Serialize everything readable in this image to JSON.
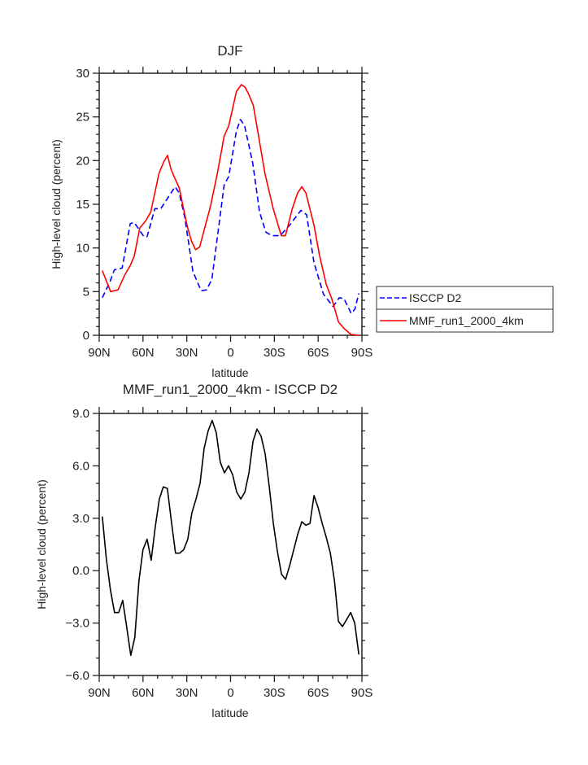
{
  "chart_data": [
    {
      "type": "line",
      "title": "DJF",
      "xlabel": "latitude",
      "ylabel": "High-level cloud (percent)",
      "xlim": [
        90,
        -90
      ],
      "ylim": [
        0,
        30
      ],
      "x_tick_values": [
        90,
        60,
        30,
        0,
        -30,
        -60,
        -90
      ],
      "x_tick_labels": [
        "90N",
        "60N",
        "30N",
        "0",
        "30S",
        "60S",
        "90S"
      ],
      "y_tick_values": [
        0,
        5,
        10,
        15,
        20,
        25,
        30
      ],
      "y_tick_labels": [
        "0",
        "5",
        "10",
        "15",
        "20",
        "25",
        "30"
      ],
      "grid": false,
      "legend_position": "right",
      "series": [
        {
          "name": "ISCCP D2",
          "color": "#0000ff",
          "style": "dashed",
          "x": [
            87.9,
            82.7,
            79.6,
            74.3,
            68.7,
            65.9,
            59.4,
            57.2,
            51.9,
            47.8,
            38.0,
            35.2,
            31.4,
            25.8,
            20.2,
            16.5,
            12.8,
            4.4,
            1.2,
            -4.0,
            -6.8,
            -9.6,
            -15.2,
            -19.9,
            -24.2,
            -28.3,
            -33.9,
            -40.4,
            -48.2,
            -52.1,
            -57.2,
            -63.7,
            -70.2,
            -74.5,
            -77.7,
            -82.7,
            -85.2,
            -87.9
          ],
          "y": [
            4.3,
            6.1,
            7.5,
            7.7,
            12.8,
            12.9,
            11.3,
            11.3,
            14.5,
            14.5,
            17.0,
            16.3,
            13.5,
            7.3,
            5.1,
            5.2,
            6.4,
            17.2,
            18.2,
            23.4,
            24.7,
            24.0,
            19.7,
            14.1,
            11.8,
            11.4,
            11.4,
            12.6,
            14.3,
            13.8,
            8.3,
            4.7,
            3.3,
            4.3,
            4.2,
            2.5,
            3.0,
            4.8
          ]
        },
        {
          "name": "MMF_run1_2000_4km",
          "color": "#ff0000",
          "style": "solid",
          "x": [
            87.9,
            82.2,
            77.1,
            72.5,
            68.7,
            65.9,
            62.2,
            58.1,
            54.7,
            51.9,
            49.1,
            46.0,
            43.2,
            40.8,
            38.0,
            35.2,
            29.6,
            26.8,
            24.0,
            21.2,
            13.7,
            9.0,
            4.4,
            1.2,
            -4.0,
            -7.4,
            -10.0,
            -12.4,
            -15.6,
            -18.9,
            -23.6,
            -29.2,
            -34.8,
            -37.6,
            -42.3,
            -46.0,
            -48.8,
            -51.6,
            -57.2,
            -60.9,
            -65.6,
            -69.3,
            -74.0,
            -77.7,
            -82.4,
            -87.9
          ],
          "y": [
            7.4,
            5.0,
            5.2,
            6.9,
            8.0,
            9.1,
            12.3,
            13.1,
            14.1,
            16.3,
            18.5,
            19.8,
            20.6,
            19.0,
            17.9,
            16.9,
            12.4,
            10.8,
            9.8,
            10.1,
            14.8,
            18.6,
            22.8,
            24.0,
            27.9,
            28.7,
            28.4,
            27.6,
            26.3,
            23.1,
            18.5,
            14.5,
            11.4,
            11.4,
            14.5,
            16.3,
            17.0,
            16.3,
            12.6,
            9.2,
            5.8,
            4.2,
            1.5,
            0.8,
            0.1,
            0.0
          ]
        }
      ]
    },
    {
      "type": "line",
      "title": "MMF_run1_2000_4km - ISCCP D2",
      "xlabel": "latitude",
      "ylabel": "High-level cloud (percent)",
      "xlim": [
        90,
        -90
      ],
      "ylim": [
        -6.0,
        9.0
      ],
      "x_tick_values": [
        90,
        60,
        30,
        0,
        -30,
        -60,
        -90
      ],
      "x_tick_labels": [
        "90N",
        "60N",
        "30N",
        "0",
        "30S",
        "60S",
        "90S"
      ],
      "y_tick_values": [
        -6,
        -3,
        0,
        3,
        6,
        9
      ],
      "y_tick_labels": [
        "−6.0",
        "−3.0",
        "0.0",
        "3.0",
        "6.0",
        "9.0"
      ],
      "grid": false,
      "series": [
        {
          "color": "#000000",
          "style": "solid",
          "x": [
            87.9,
            85.1,
            82.3,
            79.5,
            76.7,
            73.9,
            71.2,
            68.4,
            65.6,
            62.8,
            60.0,
            57.2,
            54.4,
            51.6,
            48.8,
            46.1,
            43.3,
            40.5,
            37.7,
            34.9,
            32.1,
            29.3,
            26.5,
            23.7,
            20.9,
            18.1,
            15.4,
            12.6,
            9.8,
            7.0,
            4.2,
            1.4,
            -1.4,
            -4.2,
            -7.0,
            -9.8,
            -12.6,
            -15.4,
            -18.1,
            -20.9,
            -23.7,
            -26.5,
            -29.3,
            -32.1,
            -34.9,
            -37.7,
            -40.5,
            -43.3,
            -46.1,
            -48.8,
            -51.6,
            -54.4,
            -57.2,
            -60.0,
            -62.8,
            -65.6,
            -68.4,
            -71.2,
            -73.9,
            -76.7,
            -79.5,
            -82.3,
            -85.1,
            -87.9
          ],
          "y": [
            3.1,
            0.65,
            -1.1,
            -2.4,
            -2.4,
            -1.7,
            -3.2,
            -4.85,
            -3.8,
            -0.6,
            1.2,
            1.8,
            0.6,
            2.5,
            4.1,
            4.8,
            4.7,
            2.8,
            1.0,
            1.0,
            1.2,
            1.8,
            3.3,
            4.1,
            5.0,
            7.0,
            8.0,
            8.6,
            7.9,
            6.2,
            5.6,
            6.0,
            5.5,
            4.5,
            4.1,
            4.5,
            5.6,
            7.4,
            8.1,
            7.7,
            6.7,
            4.8,
            2.7,
            1.1,
            -0.2,
            -0.5,
            0.3,
            1.2,
            2.1,
            2.8,
            2.6,
            2.7,
            4.3,
            3.6,
            2.7,
            1.9,
            1.0,
            -0.6,
            -2.9,
            -3.2,
            -2.8,
            -2.4,
            -3.0,
            -4.8
          ]
        }
      ]
    }
  ]
}
